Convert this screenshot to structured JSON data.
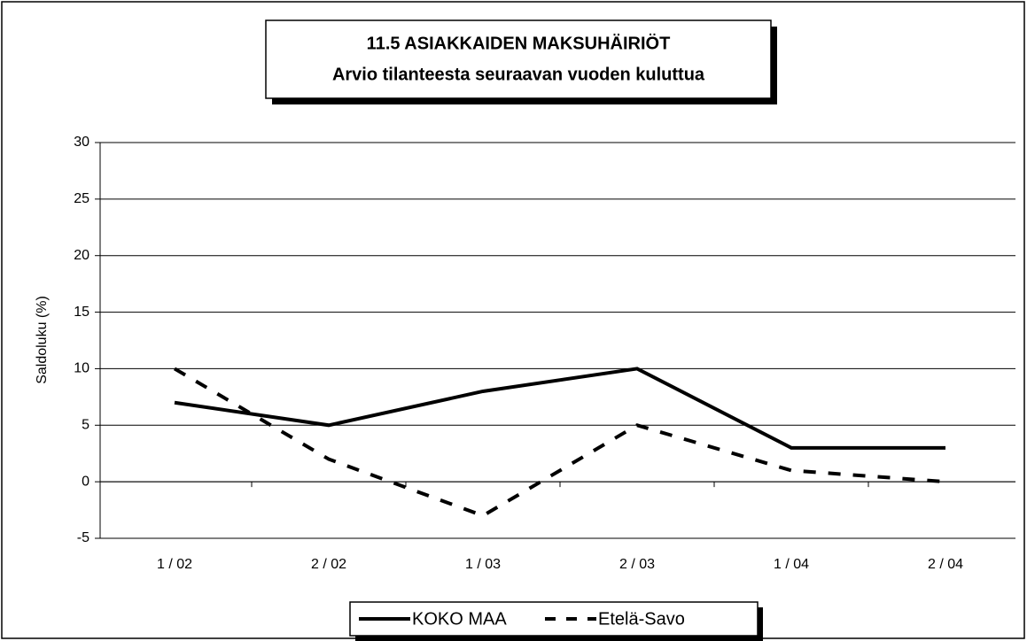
{
  "chart_data": {
    "type": "line",
    "title": "11.5 ASIAKKAIDEN MAKSUHÄIRIÖT",
    "subtitle": "Arvio tilanteesta seuraavan vuoden kuluttua",
    "y_label": "Saldoluku (%)",
    "categories": [
      "1 / 02",
      "2 / 02",
      "1 / 03",
      "2 / 03",
      "1 / 04",
      "2 / 04"
    ],
    "series": [
      {
        "name": "KOKO MAA",
        "color": "#000000",
        "dashed": false,
        "values": [
          7,
          5,
          8,
          10,
          3,
          3
        ]
      },
      {
        "name": "Etelä-Savo",
        "color": "#000000",
        "dashed": true,
        "values": [
          10,
          2,
          -3,
          5,
          1,
          0
        ]
      }
    ],
    "ylim": [
      -5,
      30
    ],
    "yticks": [
      -5,
      0,
      5,
      10,
      15,
      20,
      25,
      30
    ],
    "grid": true,
    "legend": "bottom"
  }
}
